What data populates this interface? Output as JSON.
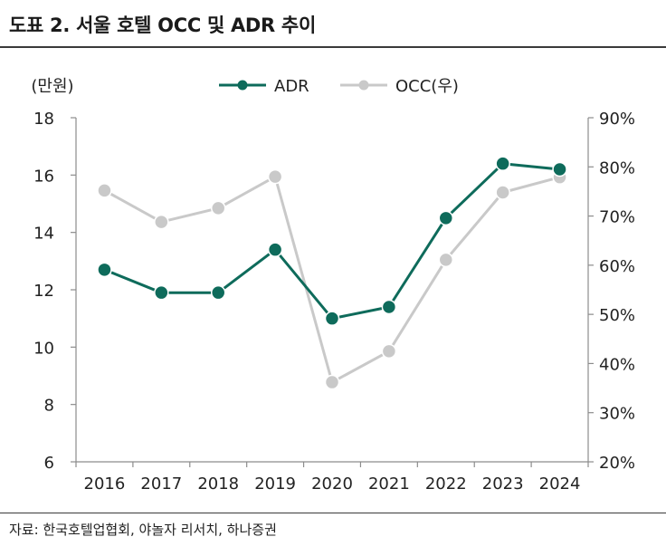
{
  "title": "도표 2. 서울 호텔 OCC 및 ADR 추이",
  "source": "자료: 한국호텔업협회, 야놀자 리서치, 하나증권",
  "colors": {
    "adr": "#0e6b5b",
    "occ": "#c9c9c9",
    "axis": "#8c8c8c"
  },
  "chart_data": {
    "type": "line",
    "categories": [
      "2016",
      "2017",
      "2018",
      "2019",
      "2020",
      "2021",
      "2022",
      "2023",
      "2024"
    ],
    "y_left": {
      "unit_label": "(만원)",
      "ylim": [
        6,
        18
      ],
      "ticks": [
        "6",
        "8",
        "10",
        "12",
        "14",
        "16",
        "18"
      ]
    },
    "y_right": {
      "ylim": [
        20,
        90
      ],
      "ticks": [
        "20%",
        "30%",
        "40%",
        "50%",
        "60%",
        "70%",
        "80%",
        "90%"
      ]
    },
    "series": [
      {
        "name": "ADR",
        "axis": "left",
        "values": [
          12.7,
          11.9,
          11.9,
          13.4,
          11.0,
          11.4,
          14.5,
          16.4,
          16.2
        ]
      },
      {
        "name": "OCC(우)",
        "axis": "right",
        "values": [
          75.2,
          68.8,
          71.6,
          78.0,
          36.2,
          42.5,
          61.1,
          74.8,
          77.9
        ]
      }
    ],
    "legend_position": "top-center",
    "grid": false
  }
}
